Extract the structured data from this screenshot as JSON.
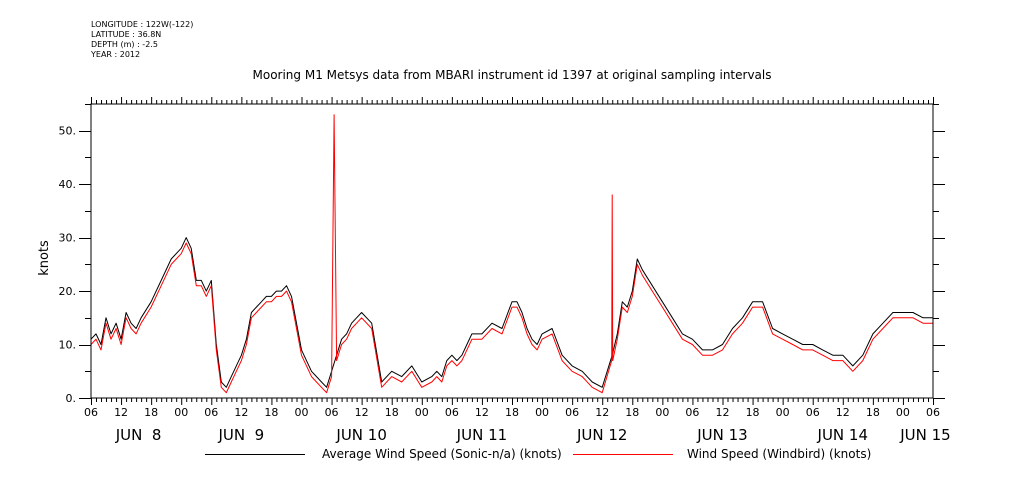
{
  "meta": {
    "longitude": "LONGITUDE : 122W(-122)",
    "latitude": "LATITUDE : 36.8N",
    "depth": "DEPTH (m) : -2.5",
    "year": "YEAR : 2012"
  },
  "chart_data": {
    "type": "line",
    "title": "Mooring M1 Metsys data from MBARI instrument id 1397 at original sampling intervals",
    "ylabel": "knots",
    "xlabel": "",
    "ylim": [
      0,
      55
    ],
    "yticks": [
      0,
      10,
      20,
      30,
      40,
      50
    ],
    "ytick_labels": [
      "0.",
      "10.",
      "20.",
      "30.",
      "40.",
      "50."
    ],
    "xlim_hours": [
      6,
      174
    ],
    "xtick_hours": [
      6,
      12,
      18,
      24,
      30,
      36,
      42,
      48,
      54,
      60,
      66,
      72,
      78,
      84,
      90,
      96,
      102,
      108,
      114,
      120,
      126,
      132,
      138,
      144,
      150,
      156,
      162,
      168,
      174
    ],
    "xtick_labels": [
      "06",
      "12",
      "18",
      "00",
      "06",
      "12",
      "18",
      "00",
      "06",
      "12",
      "18",
      "00",
      "06",
      "12",
      "18",
      "00",
      "06",
      "12",
      "18",
      "00",
      "06",
      "12",
      "18",
      "00",
      "06",
      "12",
      "18",
      "00",
      "06"
    ],
    "day_labels": [
      {
        "hour": 0,
        "label": "JUN  8"
      },
      {
        "hour": 24,
        "label": "JUN  9"
      },
      {
        "hour": 48,
        "label": "JUN 10"
      },
      {
        "hour": 72,
        "label": "JUN 11"
      },
      {
        "hour": 96,
        "label": "JUN 12"
      },
      {
        "hour": 120,
        "label": "JUN 13"
      },
      {
        "hour": 144,
        "label": "JUN 14"
      },
      {
        "hour": 168,
        "label": "JUN 15"
      }
    ],
    "x_unit": "hours since 2012-06-08 00:00",
    "series": [
      {
        "name": "Average Wind Speed (Sonic-n/a) (knots)",
        "color": "#000000",
        "x": [
          6,
          7,
          8,
          9,
          10,
          11,
          12,
          13,
          14,
          15,
          16,
          18,
          20,
          22,
          24,
          25,
          26,
          27,
          28,
          29,
          30,
          31,
          32,
          33,
          34,
          35,
          36,
          37,
          38,
          39,
          40,
          41,
          42,
          43,
          44,
          45,
          46,
          48,
          50,
          51,
          52,
          53,
          54,
          55,
          56,
          57,
          58,
          59,
          60,
          62,
          64,
          66,
          68,
          70,
          72,
          74,
          75,
          76,
          77,
          78,
          79,
          80,
          81,
          82,
          84,
          86,
          88,
          90,
          91,
          92,
          93,
          94,
          95,
          96,
          98,
          100,
          102,
          104,
          106,
          108,
          110,
          111,
          112,
          113,
          114,
          115,
          116,
          118,
          120,
          122,
          124,
          126,
          128,
          130,
          132,
          134,
          136,
          138,
          140,
          142,
          144,
          146,
          148,
          150,
          152,
          154,
          156,
          158,
          160,
          162,
          164,
          166,
          168,
          170,
          172,
          174
        ],
        "y": [
          11,
          12,
          10,
          15,
          12,
          14,
          11,
          16,
          14,
          13,
          15,
          18,
          22,
          26,
          28,
          30,
          28,
          22,
          22,
          20,
          22,
          10,
          3,
          2,
          4,
          6,
          8,
          11,
          16,
          17,
          18,
          19,
          19,
          20,
          20,
          21,
          19,
          9,
          5,
          4,
          3,
          2,
          5,
          8,
          11,
          12,
          14,
          15,
          16,
          14,
          3,
          5,
          4,
          6,
          3,
          4,
          5,
          4,
          7,
          8,
          7,
          8,
          10,
          12,
          12,
          14,
          13,
          18,
          18,
          16,
          13,
          11,
          10,
          12,
          13,
          8,
          6,
          5,
          3,
          2,
          8,
          12,
          18,
          17,
          20,
          26,
          24,
          21,
          18,
          15,
          12,
          11,
          9,
          9,
          10,
          13,
          15,
          18,
          18,
          13,
          12,
          11,
          10,
          10,
          9,
          8,
          8,
          6,
          8,
          12,
          14,
          16,
          16,
          16,
          15,
          15
        ]
      },
      {
        "name": "Wind Speed (Windbird) (knots)",
        "color": "#ff0000",
        "x": [
          6,
          7,
          8,
          9,
          10,
          11,
          12,
          13,
          14,
          15,
          16,
          18,
          20,
          22,
          24,
          25,
          26,
          27,
          28,
          29,
          30,
          31,
          32,
          33,
          34,
          35,
          36,
          37,
          38,
          39,
          40,
          41,
          42,
          43,
          44,
          45,
          46,
          48,
          50,
          51,
          52,
          53,
          54,
          54.5,
          55,
          56,
          57,
          58,
          59,
          60,
          62,
          64,
          66,
          68,
          70,
          72,
          74,
          75,
          76,
          77,
          78,
          79,
          80,
          81,
          82,
          84,
          86,
          88,
          90,
          91,
          92,
          93,
          94,
          95,
          96,
          98,
          100,
          102,
          104,
          106,
          108,
          109.9,
          110,
          110.1,
          111,
          112,
          113,
          114,
          115,
          116,
          118,
          120,
          122,
          124,
          126,
          128,
          130,
          132,
          134,
          136,
          138,
          140,
          142,
          144,
          146,
          148,
          150,
          152,
          154,
          156,
          158,
          160,
          162,
          164,
          166,
          168,
          170,
          172,
          174
        ],
        "y": [
          10,
          11,
          9,
          14,
          11,
          13,
          10,
          15,
          13,
          12,
          14,
          17,
          21,
          25,
          27,
          29,
          27,
          21,
          21,
          19,
          21,
          9,
          2,
          1,
          3,
          5,
          7,
          10,
          15,
          16,
          17,
          18,
          18,
          19,
          19,
          20,
          18,
          8,
          4,
          3,
          2,
          1,
          4,
          53,
          7,
          10,
          11,
          13,
          14,
          15,
          13,
          2,
          4,
          3,
          5,
          2,
          3,
          4,
          3,
          6,
          7,
          6,
          7,
          9,
          11,
          11,
          13,
          12,
          17,
          17,
          15,
          12,
          10,
          9,
          11,
          12,
          7,
          5,
          4,
          2,
          1,
          7,
          38,
          7,
          11,
          17,
          16,
          19,
          25,
          23,
          20,
          17,
          14,
          11,
          10,
          8,
          8,
          9,
          12,
          14,
          17,
          17,
          12,
          11,
          10,
          9,
          9,
          8,
          7,
          7,
          5,
          7,
          11,
          13,
          15,
          15,
          15,
          14,
          14
        ]
      }
    ],
    "legend": "bottom"
  },
  "colors": {
    "series_black": "#000000",
    "series_red": "#ff0000",
    "axis": "#000000",
    "background": "#ffffff"
  }
}
